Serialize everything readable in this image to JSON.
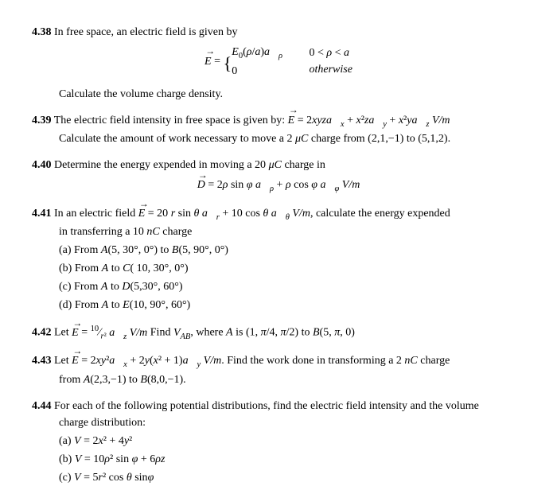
{
  "p438": {
    "num": "4.38",
    "lead": " In free space, an electric field is given by",
    "eq_lhs": "E⃗ = ",
    "eq_top": "E₀(ρ/a)a⃗ρ",
    "eq_bot": "0",
    "cond_top": "0 < ρ < a",
    "cond_bot": "otherwise",
    "task": "Calculate the volume charge density."
  },
  "p439": {
    "num": "4.39",
    "lead": " The electric field intensity in free space is given by: ",
    "eq": "E⃗ = 2xyza⃗x + x²za⃗y + x²ya⃗z V/m",
    "task": "Calculate the amount of work necessary to move a 2 μC charge from (2,1,−1) to (5,1,2)."
  },
  "p440": {
    "num": "4.40",
    "lead": " Determine the energy expended in moving a 20 μC charge in",
    "eq": "D⃗ = 2ρ sin φ a⃗ρ + ρ cos φ a⃗φ V/m"
  },
  "p441": {
    "num": "4.41",
    "lead": " In an electric field ",
    "eq": "E⃗ = 20 r sin θ a⃗r + 10 cos θ a⃗θ V/m",
    "tail": ", calculate the energy expended",
    "task": "in transferring a 10 nC charge",
    "a": "(a) From A(5, 30°, 0°) to B(5, 90°, 0°)",
    "b": "(b) From A to C( 10, 30°, 0°)",
    "c": "(c) From A to D(5,30°, 60°)",
    "d": "(d) From A to E(10, 90°, 60°)"
  },
  "p442": {
    "num": "4.42",
    "lead": " Let ",
    "eq": "E⃗ = (10/r²) a⃗z V/m",
    "tail": " Find VAB, where A is (1, π/4, π/2) to B(5, π, 0)"
  },
  "p443": {
    "num": "4.43",
    "lead": " Let ",
    "eq": "E⃗ = 2xy²a⃗x + 2y(x² + 1)a⃗y V/m",
    "tail": ". Find the work done in transforming a 2 nC charge",
    "task": "from A(2,3,−1) to B(8,0,−1)."
  },
  "p444": {
    "num": "4.44",
    "lead": " For each of the following potential distributions, find the electric field intensity and the volume",
    "task": "charge distribution:",
    "a": "(a) V =  2x² + 4y²",
    "b": "(b) V =  10ρ² sin φ + 6ρz",
    "c": "(c) V =  5r² cos θ sinφ"
  }
}
